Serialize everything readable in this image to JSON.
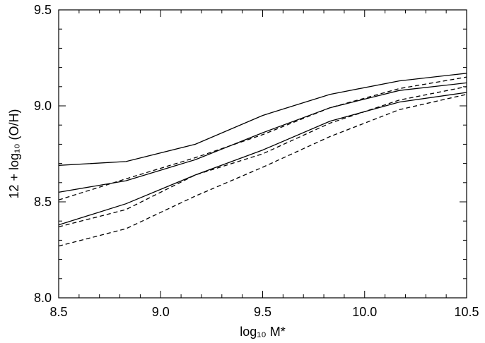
{
  "chart_data": {
    "type": "line",
    "xlabel": "log₁₀ M*",
    "ylabel": "12 + log₁₀ (O/H)",
    "xlim": [
      8.5,
      10.5
    ],
    "ylim": [
      8.0,
      9.5
    ],
    "xticks": [
      8.5,
      9.0,
      9.5,
      10.0,
      10.5
    ],
    "xtick_labels": [
      "8.5",
      "9.0",
      "9.5",
      "10.0",
      "10.5"
    ],
    "yticks": [
      8.0,
      8.5,
      9.0,
      9.5
    ],
    "ytick_labels": [
      "8.0",
      "8.5",
      "9.0",
      "9.5"
    ],
    "x": [
      8.5,
      8.83,
      9.17,
      9.5,
      9.83,
      10.17,
      10.5
    ],
    "series": [
      {
        "style": "solid",
        "values": [
          8.69,
          8.71,
          8.8,
          8.95,
          9.06,
          9.13,
          9.17
        ]
      },
      {
        "style": "solid",
        "values": [
          8.55,
          8.61,
          8.72,
          8.86,
          8.99,
          9.08,
          9.12
        ]
      },
      {
        "style": "solid",
        "values": [
          8.38,
          8.49,
          8.64,
          8.77,
          8.92,
          9.02,
          9.07
        ]
      },
      {
        "style": "dashed",
        "values": [
          8.51,
          8.62,
          8.73,
          8.85,
          8.99,
          9.09,
          9.15
        ]
      },
      {
        "style": "dashed",
        "values": [
          8.37,
          8.46,
          8.64,
          8.75,
          8.91,
          9.03,
          9.1
        ]
      },
      {
        "style": "dashed",
        "values": [
          8.27,
          8.36,
          8.53,
          8.68,
          8.84,
          8.98,
          9.06
        ]
      }
    ],
    "grid": false,
    "legend": "none",
    "line_color": "#000000"
  }
}
